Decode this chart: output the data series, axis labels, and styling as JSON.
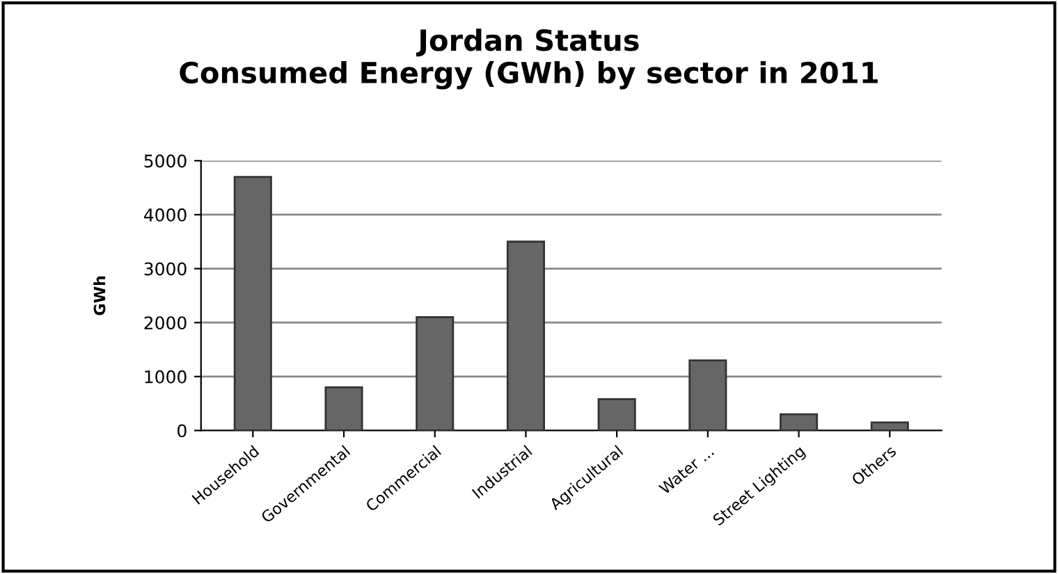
{
  "chart_data": {
    "type": "bar",
    "title": "Jordan Status\nConsumed Energy (GWh) by sector in 2011",
    "ylabel": "GWh",
    "categories": [
      "Household",
      "Governmental",
      "Commercial",
      "Industrial",
      "Agricultural",
      "Water ...",
      "Street Lighting",
      "Others"
    ],
    "values": [
      4700,
      800,
      2100,
      3500,
      580,
      1300,
      300,
      150
    ],
    "color": "#666666",
    "ylim": [
      0,
      5000
    ],
    "yticks": [
      0,
      1000,
      2000,
      3000,
      4000,
      5000
    ],
    "grid": "y"
  }
}
